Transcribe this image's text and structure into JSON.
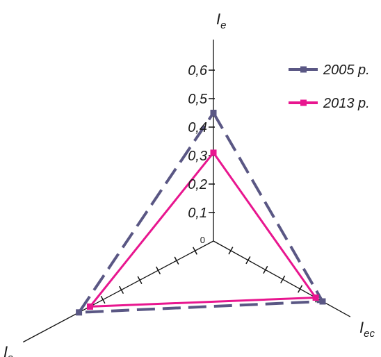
{
  "chart_data": {
    "type": "radar",
    "axes": [
      {
        "id": "e",
        "base": "I",
        "sub": "e"
      },
      {
        "id": "ec",
        "base": "I",
        "sub": "ec"
      },
      {
        "id": "s",
        "base": "I",
        "sub": "s"
      }
    ],
    "range": [
      0,
      0.6
    ],
    "tick_labels": [
      "0",
      "0,1",
      "0,2",
      "0,3",
      "0,4",
      "0,5",
      "0,6"
    ],
    "series": [
      {
        "name": "2005 p.",
        "color": "#5a5784",
        "dash": true,
        "values": [
          0.45,
          0.63,
          0.73
        ]
      },
      {
        "name": "2013 p.",
        "color": "#e8168f",
        "dash": false,
        "values": [
          0.31,
          0.59,
          0.67
        ]
      }
    ],
    "legend_position": "top-right"
  }
}
